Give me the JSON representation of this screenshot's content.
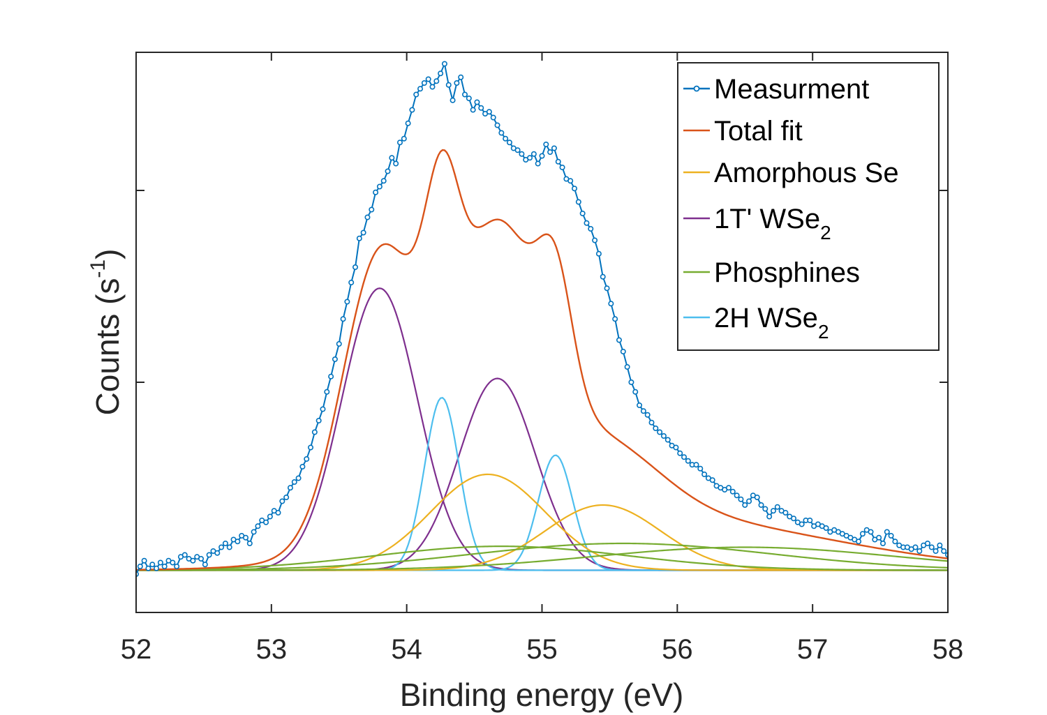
{
  "chart_data": {
    "type": "line",
    "xlabel": "Binding energy (eV)",
    "ylabel_main": "Counts (s",
    "ylabel_sup": "-1",
    "ylabel_end": ")",
    "xlim": [
      52,
      58
    ],
    "ylim": [
      -0.2,
      2.72
    ],
    "x_ticks": [
      52,
      53,
      54,
      55,
      56,
      57,
      58
    ],
    "x_tick_labels": [
      "52",
      "53",
      "54",
      "55",
      "56",
      "57",
      "58"
    ],
    "y_ticks": [
      1,
      2
    ],
    "y_tick_labels_visible": false,
    "grid": false,
    "legend_position": "top-right",
    "colors": {
      "measurement": "#0072BD",
      "total_fit": "#D95319",
      "amorphous": "#EDB120",
      "wse2_1t": "#7E2F8E",
      "phosphines": "#77AC30",
      "wse2_2h": "#4DBEEE",
      "axes": "#262626"
    },
    "legend": [
      {
        "key": "measurement",
        "label": "Measurment",
        "sub": "",
        "marker": true
      },
      {
        "key": "total_fit",
        "label": "Total fit",
        "sub": "",
        "marker": false
      },
      {
        "key": "amorphous",
        "label": "Amorphous Se",
        "sub": "",
        "marker": false
      },
      {
        "key": "wse2_1t",
        "label": "1T' WSe",
        "sub": "2",
        "marker": false
      },
      {
        "key": "phosphines",
        "label": "Phosphines",
        "sub": "",
        "marker": false
      },
      {
        "key": "wse2_2h",
        "label": "2H WSe",
        "sub": "2",
        "marker": false
      }
    ],
    "baseline": 0.02,
    "components": [
      {
        "key": "wse2_1t",
        "peaks": [
          {
            "center": 53.8,
            "amplitude": 1.47,
            "fwhm": 0.66
          },
          {
            "center": 54.67,
            "amplitude": 1.0,
            "fwhm": 0.66
          }
        ]
      },
      {
        "key": "wse2_2h",
        "peaks": [
          {
            "center": 54.26,
            "amplitude": 0.9,
            "fwhm": 0.3
          },
          {
            "center": 55.1,
            "amplitude": 0.6,
            "fwhm": 0.3
          }
        ]
      },
      {
        "key": "amorphous",
        "peaks": [
          {
            "center": 54.6,
            "amplitude": 0.5,
            "fwhm": 1.0
          },
          {
            "center": 55.45,
            "amplitude": 0.34,
            "fwhm": 1.0
          }
        ]
      },
      {
        "key": "phosphines",
        "peaks": [
          {
            "center": 54.7,
            "amplitude": 0.125,
            "fwhm": 2.2
          },
          {
            "center": 55.6,
            "amplitude": 0.14,
            "fwhm": 2.6
          },
          {
            "center": 56.5,
            "amplitude": 0.12,
            "fwhm": 2.6
          }
        ]
      }
    ],
    "measurement": {
      "x": [
        52.0,
        52.03,
        52.06,
        52.09,
        52.12,
        52.15,
        52.18,
        52.21,
        52.24,
        52.27,
        52.3,
        52.33,
        52.36,
        52.39,
        52.42,
        52.45,
        52.48,
        52.51,
        52.54,
        52.57,
        52.6,
        52.63,
        52.66,
        52.69,
        52.72,
        52.75,
        52.78,
        52.81,
        52.84,
        52.87,
        52.9,
        52.93,
        52.96,
        52.99,
        53.02,
        53.05,
        53.08,
        53.11,
        53.14,
        53.17,
        53.2,
        53.23,
        53.26,
        53.29,
        53.32,
        53.35,
        53.38,
        53.41,
        53.44,
        53.47,
        53.5,
        53.53,
        53.56,
        53.59,
        53.62,
        53.65,
        53.68,
        53.71,
        53.74,
        53.77,
        53.8,
        53.83,
        53.86,
        53.89,
        53.92,
        53.95,
        53.98,
        54.01,
        54.04,
        54.07,
        54.1,
        54.13,
        54.16,
        54.19,
        54.22,
        54.25,
        54.28,
        54.31,
        54.34,
        54.37,
        54.4,
        54.43,
        54.46,
        54.49,
        54.52,
        54.55,
        54.58,
        54.61,
        54.64,
        54.67,
        54.7,
        54.73,
        54.76,
        54.79,
        54.82,
        54.85,
        54.88,
        54.91,
        54.94,
        54.97,
        55.0,
        55.03,
        55.06,
        55.09,
        55.12,
        55.15,
        55.18,
        55.21,
        55.24,
        55.27,
        55.3,
        55.33,
        55.36,
        55.39,
        55.42,
        55.45,
        55.48,
        55.51,
        55.54,
        55.57,
        55.6,
        55.63,
        55.66,
        55.69,
        55.72,
        55.75,
        55.78,
        55.81,
        55.84,
        55.87,
        55.9,
        55.93,
        55.96,
        55.99,
        56.02,
        56.05,
        56.08,
        56.11,
        56.14,
        56.17,
        56.2,
        56.23,
        56.26,
        56.29,
        56.32,
        56.35,
        56.38,
        56.41,
        56.44,
        56.47,
        56.5,
        56.53,
        56.56,
        56.59,
        56.62,
        56.65,
        56.68,
        56.71,
        56.74,
        56.77,
        56.8,
        56.83,
        56.86,
        56.89,
        56.92,
        56.95,
        56.98,
        57.01,
        57.04,
        57.07,
        57.1,
        57.13,
        57.16,
        57.19,
        57.22,
        57.25,
        57.28,
        57.31,
        57.34,
        57.37,
        57.4,
        57.43,
        57.46,
        57.49,
        57.52,
        57.55,
        57.58,
        57.61,
        57.64,
        57.67,
        57.7,
        57.73,
        57.76,
        57.79,
        57.82,
        57.85,
        57.88,
        57.91,
        57.94,
        57.97,
        58.0
      ],
      "y": [
        0.0,
        0.04,
        0.07,
        0.03,
        0.05,
        0.03,
        0.06,
        0.04,
        0.07,
        0.06,
        0.04,
        0.09,
        0.1,
        0.08,
        0.07,
        0.09,
        0.08,
        0.05,
        0.1,
        0.12,
        0.11,
        0.14,
        0.16,
        0.14,
        0.18,
        0.17,
        0.2,
        0.19,
        0.16,
        0.22,
        0.25,
        0.28,
        0.27,
        0.3,
        0.33,
        0.32,
        0.38,
        0.4,
        0.45,
        0.48,
        0.5,
        0.56,
        0.6,
        0.66,
        0.74,
        0.8,
        0.86,
        0.95,
        1.03,
        1.12,
        1.2,
        1.33,
        1.42,
        1.52,
        1.6,
        1.75,
        1.78,
        1.86,
        1.9,
        1.99,
        2.02,
        2.05,
        2.1,
        2.17,
        2.14,
        2.25,
        2.27,
        2.35,
        2.42,
        2.5,
        2.53,
        2.56,
        2.58,
        2.54,
        2.57,
        2.61,
        2.66,
        2.55,
        2.47,
        2.56,
        2.59,
        2.5,
        2.48,
        2.42,
        2.46,
        2.43,
        2.4,
        2.41,
        2.38,
        2.34,
        2.3,
        2.27,
        2.25,
        2.22,
        2.21,
        2.19,
        2.16,
        2.17,
        2.19,
        2.14,
        2.18,
        2.24,
        2.2,
        2.22,
        2.15,
        2.12,
        2.06,
        2.05,
        2.01,
        1.94,
        1.88,
        1.83,
        1.8,
        1.74,
        1.67,
        1.55,
        1.49,
        1.41,
        1.33,
        1.22,
        1.16,
        1.08,
        1.0,
        0.95,
        0.88,
        0.85,
        0.83,
        0.79,
        0.76,
        0.74,
        0.72,
        0.7,
        0.67,
        0.66,
        0.63,
        0.61,
        0.59,
        0.57,
        0.57,
        0.55,
        0.52,
        0.5,
        0.49,
        0.46,
        0.45,
        0.44,
        0.45,
        0.43,
        0.41,
        0.39,
        0.36,
        0.38,
        0.41,
        0.4,
        0.36,
        0.34,
        0.3,
        0.33,
        0.35,
        0.33,
        0.32,
        0.3,
        0.29,
        0.27,
        0.26,
        0.28,
        0.28,
        0.25,
        0.26,
        0.25,
        0.24,
        0.22,
        0.23,
        0.22,
        0.21,
        0.2,
        0.19,
        0.18,
        0.17,
        0.21,
        0.23,
        0.22,
        0.18,
        0.19,
        0.16,
        0.22,
        0.2,
        0.17,
        0.15,
        0.14,
        0.14,
        0.13,
        0.14,
        0.12,
        0.15,
        0.16,
        0.14,
        0.12,
        0.15,
        0.12,
        0.1
      ]
    }
  }
}
